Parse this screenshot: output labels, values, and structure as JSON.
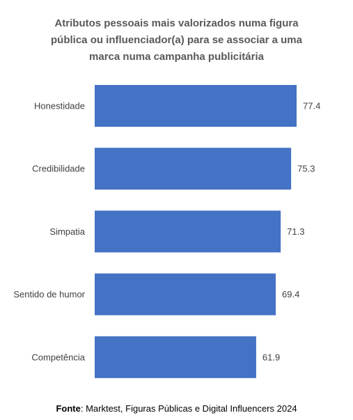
{
  "chart_data": {
    "type": "bar",
    "orientation": "horizontal",
    "title": "Atributos pessoais  mais valorizados numa figura\npública ou influenciador(a) para se associar a uma\nmarca numa campanha publicitária",
    "categories": [
      "Honestidade",
      "Credibilidade",
      "Simpatia",
      "Sentido de humor",
      "Competência"
    ],
    "values": [
      77.4,
      75.3,
      71.3,
      69.4,
      61.9
    ],
    "value_labels": [
      "77.4",
      "75.3",
      "71.3",
      "69.4",
      "61.9"
    ],
    "bar_color": "#4472C4",
    "grid": false,
    "legend": "none"
  },
  "source": {
    "label": "Fonte",
    "text": ": Marktest, Figuras Públicas e Digital Influencers 2024"
  }
}
